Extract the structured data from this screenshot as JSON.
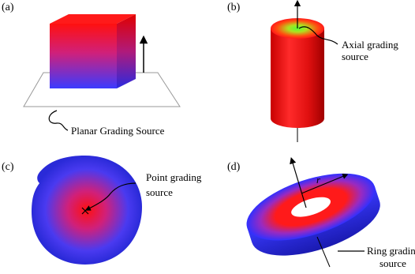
{
  "panels": [
    {
      "letter": "(a)",
      "caption": "Planar Grading Source"
    },
    {
      "letter": "(b)",
      "caption_line1": "Axial grading",
      "caption_line2": "source"
    },
    {
      "letter": "(c)",
      "caption_line1": "Point grading",
      "caption_line2": "source"
    },
    {
      "letter": "(d)",
      "caption_line1": "Ring grading",
      "caption_line2": "source",
      "radius_label": "r"
    }
  ],
  "colors": {
    "red": "#ff1a1a",
    "blue": "#3b3bff",
    "green": "#66ff33",
    "magenta": "#cc33cc"
  }
}
